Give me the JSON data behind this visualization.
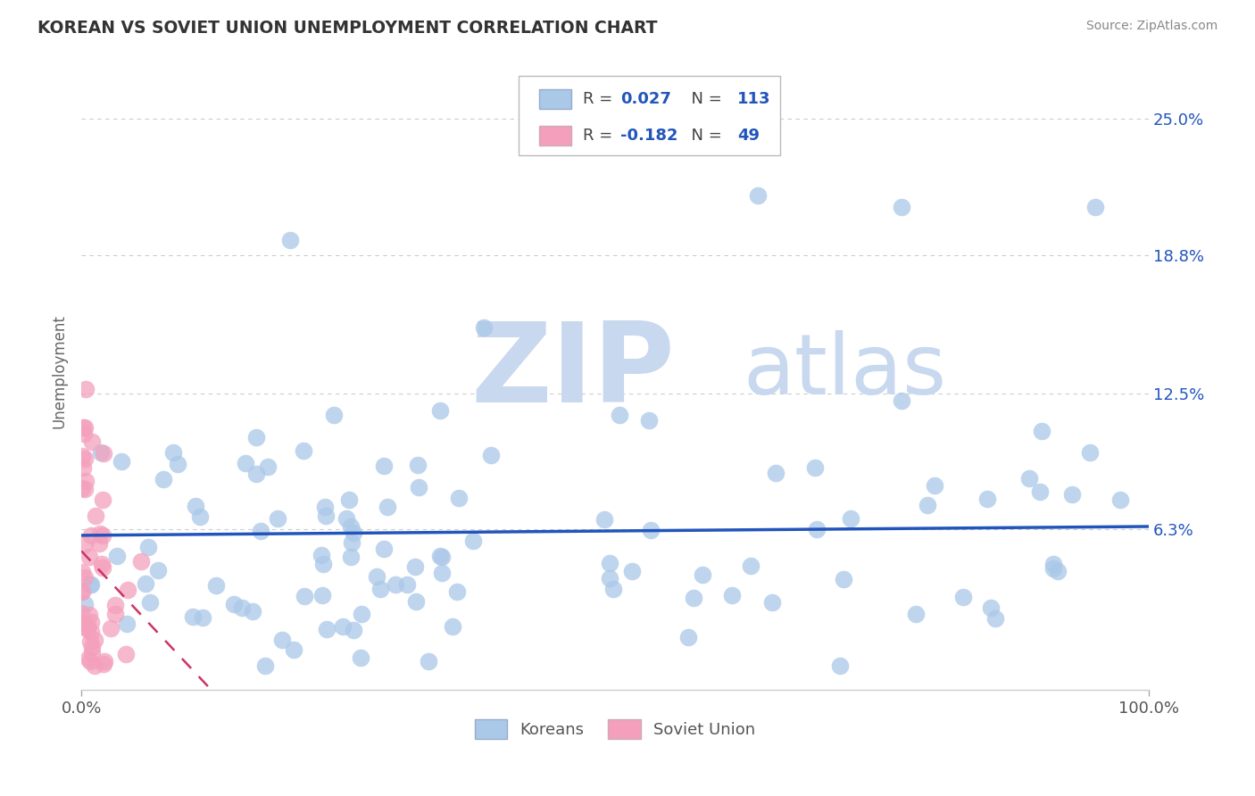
{
  "title": "KOREAN VS SOVIET UNION UNEMPLOYMENT CORRELATION CHART",
  "source": "Source: ZipAtlas.com",
  "ylabel": "Unemployment",
  "xlim": [
    0.0,
    1.0
  ],
  "ylim": [
    -0.01,
    0.28
  ],
  "yticks": [
    0.063,
    0.125,
    0.188,
    0.25
  ],
  "ytick_labels": [
    "6.3%",
    "12.5%",
    "18.8%",
    "25.0%"
  ],
  "xticks": [
    0.0,
    1.0
  ],
  "xtick_labels": [
    "0.0%",
    "100.0%"
  ],
  "blue_color": "#aac8e8",
  "pink_color": "#f4a0bc",
  "blue_line_color": "#2255bb",
  "pink_line_color": "#cc3366",
  "blue_R": 0.027,
  "blue_N": 113,
  "pink_R": -0.182,
  "pink_N": 49,
  "watermark_zip": "ZIP",
  "watermark_atlas": "atlas",
  "watermark_color": "#c8d8ee",
  "background_color": "#ffffff",
  "grid_color": "#cccccc",
  "right_label_color": "#2255bb",
  "title_color": "#333333",
  "source_color": "#888888",
  "legend_text_color": "#444444"
}
